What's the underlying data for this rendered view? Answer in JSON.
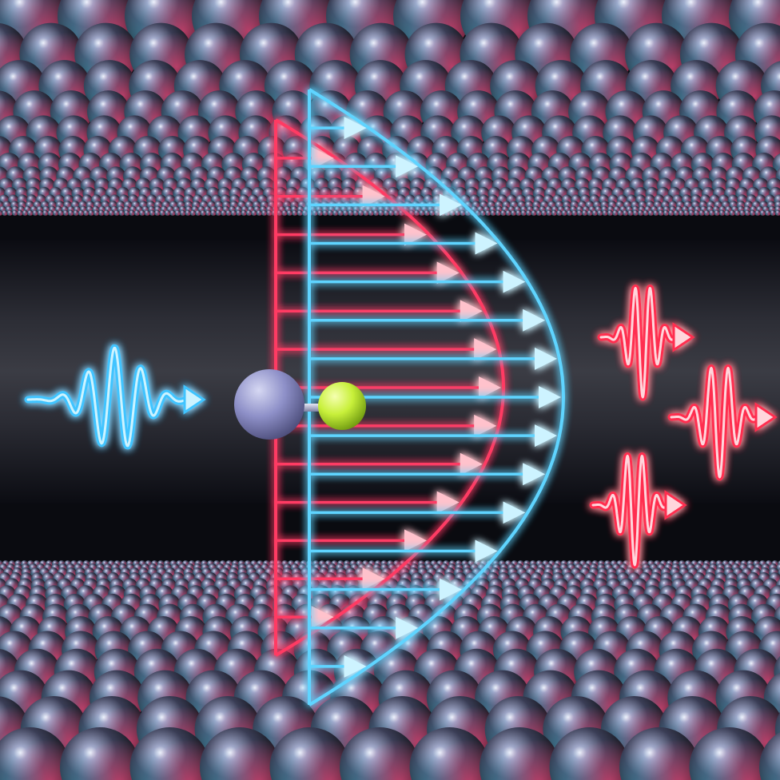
{
  "scene": {
    "subject": "molecule-in-nanoconfined-flow",
    "background_color": "#0a0b10",
    "colors": {
      "blue_glow": "#3fc4ff",
      "blue_core": "#cdf3ff",
      "red_glow": "#ff2f4f",
      "red_core": "#ffd6dc",
      "atom_large": "#8e90c8",
      "atom_small": "#c8f03a",
      "sphere_highlight_pink": "#ff4f86",
      "sphere_highlight_cyan": "#5cd8ff"
    },
    "elements": {
      "incoming_wave": "blue-wave-packet",
      "outgoing_waves": [
        "red-wave-packet",
        "red-wave-packet",
        "red-wave-packet"
      ],
      "flow_profiles": [
        "blue-parabolic-velocity-profile",
        "red-parabolic-velocity-profile"
      ],
      "molecule": [
        "large-lavender-atom",
        "small-yellow-green-atom"
      ],
      "walls": [
        "upper-sphere-lattice",
        "lower-sphere-lattice"
      ]
    }
  }
}
